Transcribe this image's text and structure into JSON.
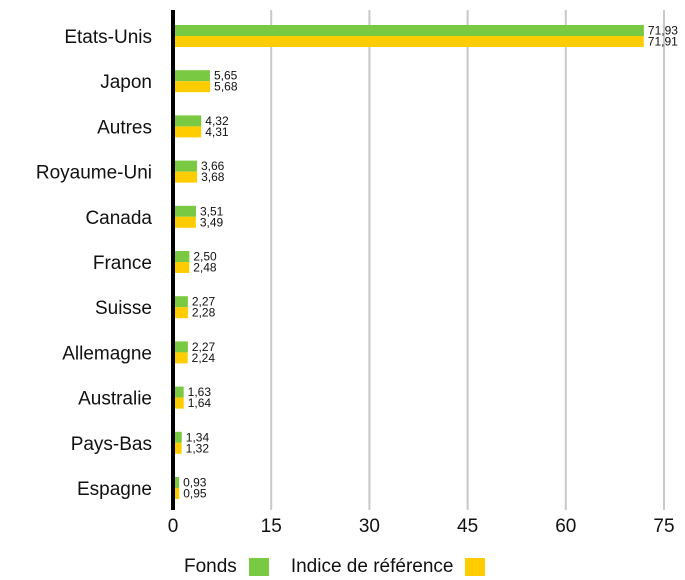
{
  "chart_data": {
    "type": "bar",
    "orientation": "horizontal",
    "categories": [
      "Etats-Unis",
      "Japon",
      "Autres",
      "Royaume-Uni",
      "Canada",
      "France",
      "Suisse",
      "Allemagne",
      "Australie",
      "Pays-Bas",
      "Espagne"
    ],
    "series": [
      {
        "name": "Fonds",
        "color": "#7ac943",
        "values": [
          71.93,
          5.65,
          4.32,
          3.66,
          3.51,
          2.5,
          2.27,
          2.27,
          1.63,
          1.34,
          0.93
        ],
        "labels": [
          "71,93",
          "5,65",
          "4,32",
          "3,66",
          "3,51",
          "2,50",
          "2,27",
          "2,27",
          "1,63",
          "1,34",
          "0,93"
        ]
      },
      {
        "name": "Indice de référence",
        "color": "#ffcc00",
        "values": [
          71.91,
          5.68,
          4.31,
          3.68,
          3.49,
          2.48,
          2.28,
          2.24,
          1.64,
          1.32,
          0.95
        ],
        "labels": [
          "71,91",
          "5,68",
          "4,31",
          "3,68",
          "3,49",
          "2,48",
          "2,28",
          "2,24",
          "1,64",
          "1,32",
          "0,95"
        ]
      }
    ],
    "xlim": [
      0,
      75
    ],
    "xticks": [
      0,
      15,
      30,
      45,
      60,
      75
    ],
    "grid": "vertical",
    "legend_position": "bottom",
    "title": "",
    "xlabel": "",
    "ylabel": ""
  },
  "legend": {
    "fonds_label": "Fonds",
    "indice_label": "Indice de référence"
  }
}
